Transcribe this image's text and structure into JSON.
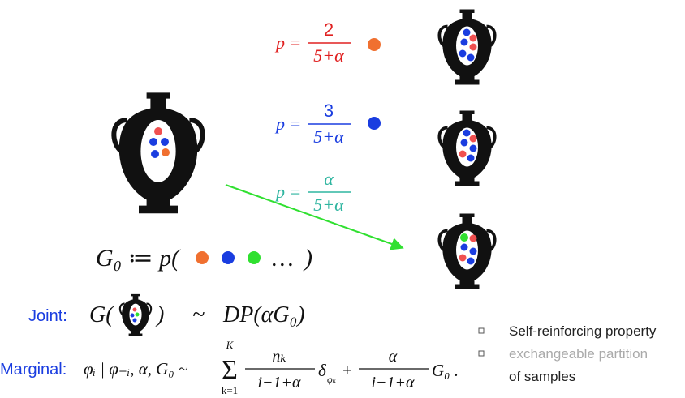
{
  "fractions": [
    {
      "lhs": "p =",
      "numerator": "2",
      "denominator": "5+α"
    },
    {
      "lhs": "p =",
      "numerator": "3",
      "denominator": "5+α"
    },
    {
      "lhs": "p =",
      "numerator": "α",
      "denominator": "5+α"
    }
  ],
  "base_measure": {
    "lhs": "G₀ ≔ p(",
    "ellipsis": "…",
    "close": ")"
  },
  "joint": {
    "label": "Joint:",
    "open": "G(",
    "close": ")",
    "tilde": "~",
    "rhs": "DP(αG₀)"
  },
  "marginal": {
    "label": "Marginal:",
    "lhs": "φᵢ | φ₋ᵢ, α, G₀ ~",
    "sum_upper": "K",
    "sum_symbol": "Σ",
    "sum_lower": "k=1",
    "term1_numerator": "nₖ",
    "term1_denominator": "i−1+α",
    "delta": "δ",
    "delta_sub": "φₖ",
    "plus": "+",
    "term2_numerator": "α",
    "term2_denominator": "i−1+α",
    "tail": "G₀ ."
  },
  "bullets": [
    {
      "lines": [
        "Self-reinforcing property"
      ]
    },
    {
      "lines": [
        "exchangeable partition",
        "of samples"
      ]
    }
  ]
}
